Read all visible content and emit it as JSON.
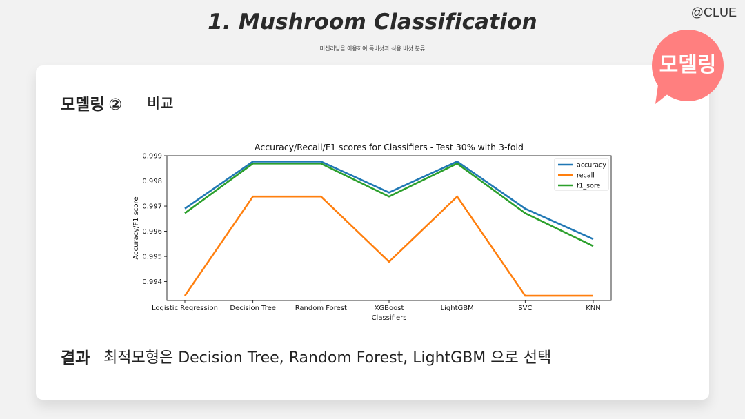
{
  "header": {
    "title": "1.  Mushroom Classification",
    "subtitle": "머신러닝을 이용하여 독버섯과 식용 버섯 분류",
    "brand": "@CLUE"
  },
  "badge": {
    "label": "모델링",
    "color": "#ff7f7f"
  },
  "section": {
    "heading": "모델링",
    "number": "②",
    "subheading": "비교"
  },
  "result": {
    "label": "결과",
    "text": "최적모형은 Decision Tree, Random Forest, LightGBM 으로 선택"
  },
  "chart_data": {
    "type": "line",
    "title": "Accuracy/Recall/F1 scores for Classifiers - Test 30% with 3-fold",
    "xlabel": "Classifiers",
    "ylabel": "Accuracy/F1 score",
    "categories": [
      "Logistic Regression",
      "Decision Tree",
      "Random Forest",
      "XGBoost",
      "LightGBM",
      "SVC",
      "KNN"
    ],
    "ylim": [
      0.99325,
      0.999
    ],
    "yticks": [
      "0.994",
      "0.995",
      "0.996",
      "0.997",
      "0.998",
      "0.999"
    ],
    "grid": false,
    "legend_position": "top-right",
    "series": [
      {
        "name": "accuracy",
        "color": "#1f77b4",
        "values": [
          0.9969,
          0.99877,
          0.99877,
          0.99754,
          0.99877,
          0.9969,
          0.99569
        ]
      },
      {
        "name": "recall",
        "color": "#ff7f0e",
        "values": [
          0.99344,
          0.99738,
          0.99738,
          0.99479,
          0.99738,
          0.99344,
          0.99344
        ]
      },
      {
        "name": "f1_sore",
        "color": "#2ca02c",
        "values": [
          0.99672,
          0.99869,
          0.99869,
          0.99738,
          0.99869,
          0.99672,
          0.99541
        ]
      }
    ]
  }
}
